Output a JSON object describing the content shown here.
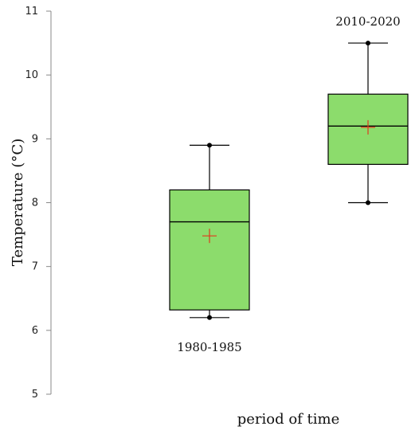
{
  "chart_data": {
    "type": "box",
    "title": "",
    "xlabel": "period of time",
    "ylabel": "Temperature (°C)",
    "ylim": [
      5,
      11
    ],
    "yticks": [
      "5",
      "6",
      "7",
      "8",
      "9",
      "10",
      "11"
    ],
    "grid": false,
    "categories": [
      "1980-1985",
      "2010-2020"
    ],
    "boxes": [
      {
        "category": "1980-1985",
        "min": 6.2,
        "q1": 6.32,
        "median": 7.7,
        "q3": 8.2,
        "max": 8.9,
        "mean": 7.48
      },
      {
        "category": "2010-2020",
        "min": 8.0,
        "q1": 8.6,
        "median": 9.2,
        "q3": 9.7,
        "max": 10.5,
        "mean": 9.18
      }
    ],
    "colors": {
      "box_fill": "#8cdc6c",
      "mean_marker": "#e03a1e",
      "lines": "#000000",
      "axis": "#888888"
    }
  }
}
